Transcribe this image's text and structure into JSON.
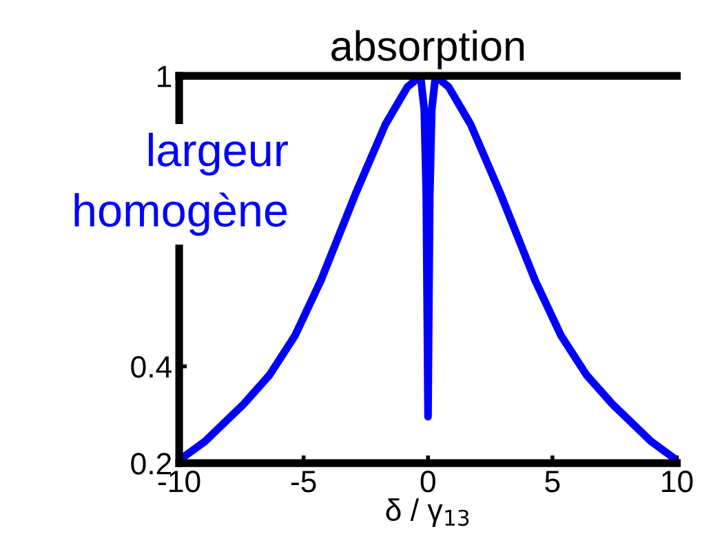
{
  "chart_data": {
    "type": "line",
    "title": "absorption",
    "xlabel": "δ / γ$_{13}$",
    "x": [
      -10,
      -8.96,
      -7.41,
      -6.37,
      -5.34,
      -4.3,
      -2.9,
      -1.71,
      -0.83,
      -0.3,
      -0.15,
      -0.07,
      -0.03,
      0,
      0.03,
      0.07,
      0.15,
      0.3,
      0.83,
      1.71,
      2.9,
      4.3,
      5.34,
      6.37,
      7.41,
      8.96,
      10
    ],
    "series": [
      {
        "color": "#0000ff",
        "values": [
          0.206,
          0.245,
          0.322,
          0.382,
          0.464,
          0.578,
          0.758,
          0.9,
          0.977,
          1.0,
          0.93,
          0.75,
          0.5,
          0.296,
          0.5,
          0.75,
          0.93,
          1.0,
          0.977,
          0.9,
          0.758,
          0.578,
          0.464,
          0.382,
          0.322,
          0.245,
          0.206
        ]
      }
    ],
    "xlim": [
      -10,
      10
    ],
    "xticks": [
      -10,
      -5,
      0,
      5,
      10
    ],
    "ylim": [
      0.2,
      1
    ],
    "yticks": [
      0.2,
      0.4,
      1
    ],
    "annotations": [
      "largeur\nhomogène"
    ],
    "grid": false,
    "legend": false,
    "marker": "none",
    "line_style": "solid"
  }
}
